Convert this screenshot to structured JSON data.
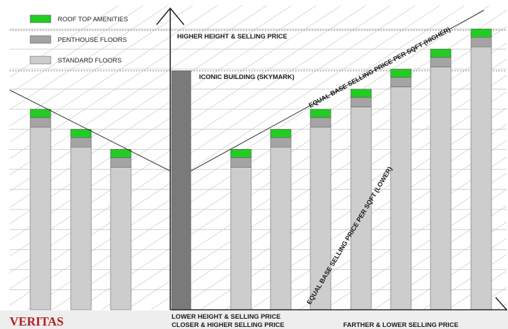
{
  "legend": {
    "roof": "ROOF TOP AMENITIES",
    "penthouse": "PENTHOUSE FLOORS",
    "standard": "STANDARD FLOORS"
  },
  "labels": {
    "higher": "HIGHER HEIGHT & SELLING PRICE",
    "iconic": "ICONIC BUILDING (SKYMARK)",
    "equal_higher": "EQUAL BASE SELLING PRICE PER SQFT (HIGHER)",
    "equal_lower": "EQUAL BASE SELLING PRICE PER SQFT (LOWER)",
    "lower_height": "LOWER HEIGHT & SELLING PRICE",
    "closer": "CLOSER & HIGHER SELLING PRICE",
    "farther": "FARTHER & LOWER SELLING PRICE"
  },
  "brand": "VERITAS",
  "colors": {
    "roof": "#22cc22",
    "penthouse": "#a4a4a4",
    "standard": "#cdcdcd",
    "iconic": "#7a7a7a",
    "brand": "#b3201b"
  },
  "buildings": {
    "left_floors": [
      10,
      9,
      8
    ],
    "iconic_floors": 12,
    "right_floors": [
      8,
      9,
      10,
      11,
      12,
      13,
      14
    ]
  }
}
